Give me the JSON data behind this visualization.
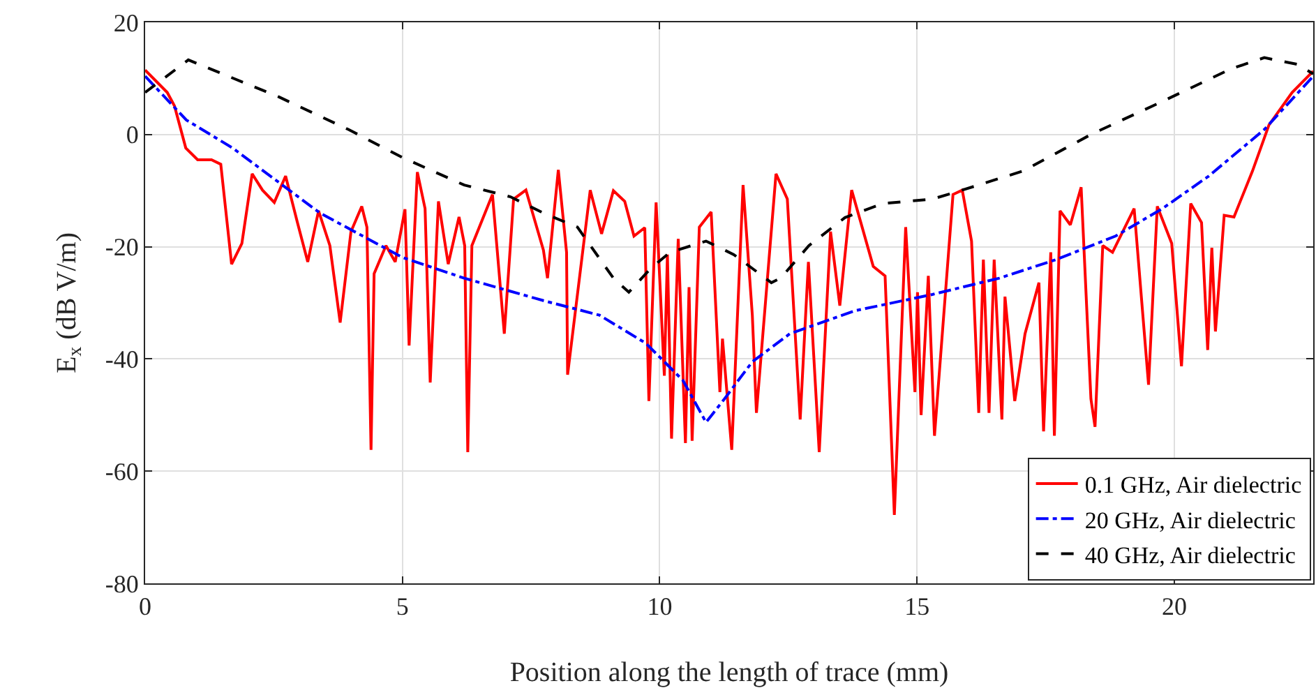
{
  "chart_data": {
    "type": "line",
    "xlabel": "Position along the length of trace (mm)",
    "ylabel": "E$_{x}$ (dB V/m)",
    "xlim": [
      0,
      22.7
    ],
    "xticks": [
      0,
      5,
      10,
      15,
      20
    ],
    "ylim": [
      -80,
      20
    ],
    "yticks": [
      -80,
      -60,
      -40,
      -20,
      0,
      20
    ],
    "grid": true,
    "legend": "bottom right",
    "marker": "none",
    "series": [
      {
        "name": "0.1 GHz, Air dielectric",
        "color": "#ff0000",
        "line_style": "solid",
        "x": [
          0,
          0.43,
          0.57,
          0.79,
          1.02,
          1.29,
          1.47,
          1.68,
          1.88,
          2.08,
          2.28,
          2.51,
          2.73,
          2.96,
          3.16,
          3.37,
          3.59,
          3.79,
          4,
          4.21,
          4.31,
          4.39,
          4.45,
          4.68,
          4.86,
          5.05,
          5.13,
          5.29,
          5.44,
          5.54,
          5.7,
          5.89,
          6.1,
          6.21,
          6.27,
          6.35,
          6.75,
          6.98,
          7.16,
          7.4,
          7.74,
          7.82,
          8.03,
          8.19,
          8.21,
          8.65,
          8.87,
          9.1,
          9.32,
          9.5,
          9.71,
          9.79,
          9.93,
          10.09,
          10.15,
          10.23,
          10.36,
          10.5,
          10.57,
          10.63,
          10.77,
          11,
          11.17,
          11.22,
          11.4,
          11.62,
          11.8,
          11.88,
          12.26,
          12.48,
          12.73,
          12.89,
          13.1,
          13.32,
          13.5,
          13.73,
          14.15,
          14.38,
          14.56,
          14.78,
          14.96,
          15.01,
          15.08,
          15.22,
          15.34,
          15.7,
          15.88,
          16.06,
          16.2,
          16.29,
          16.4,
          16.5,
          16.65,
          16.71,
          16.9,
          17.1,
          17.37,
          17.46,
          17.6,
          17.67,
          17.78,
          17.98,
          18.19,
          18.38,
          18.46,
          18.61,
          18.8,
          19.22,
          19.5,
          19.67,
          19.95,
          20.14,
          20.32,
          20.53,
          20.65,
          20.73,
          20.8,
          20.97,
          21.16,
          21.52,
          21.84,
          22.29,
          22.7
        ],
        "values": [
          11.5,
          7.5,
          5.1,
          -2.4,
          -4.5,
          -4.5,
          -5.3,
          -23.1,
          -19.4,
          -7,
          -9.9,
          -12.1,
          -7.4,
          -15.7,
          -22.7,
          -13.6,
          -19.8,
          -33.5,
          -17.3,
          -12.8,
          -16.5,
          -56.2,
          -24.8,
          -19.8,
          -22.7,
          -13.3,
          -37.6,
          -6.7,
          -13.2,
          -44.2,
          -11.9,
          -23.1,
          -14.7,
          -19.8,
          -56.6,
          -19.8,
          -10.7,
          -35.5,
          -11.5,
          -9.9,
          -20.6,
          -25.6,
          -6.3,
          -21,
          -42.8,
          -9.9,
          -17.7,
          -10,
          -11.9,
          -18.1,
          -16.6,
          -47.5,
          -12.1,
          -43,
          -21.4,
          -54.2,
          -18.6,
          -55,
          -27.2,
          -54.6,
          -16.5,
          -13.8,
          -45.9,
          -36.4,
          -56.2,
          -9,
          -32.2,
          -49.6,
          -7,
          -11.5,
          -50.8,
          -22.7,
          -56.6,
          -17.3,
          -30.5,
          -9.9,
          -23.5,
          -25.2,
          -67.8,
          -16.5,
          -45.9,
          -28.1,
          -50,
          -25.2,
          -53.7,
          -10.7,
          -9.9,
          -19,
          -49.6,
          -22.3,
          -49.6,
          -22.3,
          -50.8,
          -28.9,
          -47.5,
          -35.5,
          -26.4,
          -52.9,
          -21,
          -53.7,
          -13.6,
          -16.1,
          -9.4,
          -47.1,
          -52.1,
          -19.8,
          -21,
          -13.2,
          -44.6,
          -12.8,
          -19.4,
          -41.3,
          -12.3,
          -15.7,
          -38.4,
          -20.2,
          -35.1,
          -14.4,
          -14.7,
          -6.5,
          1.7,
          7.5,
          11.3
        ]
      },
      {
        "name": "20 GHz, Air dielectric",
        "color": "#0000ff",
        "line_style": "dashdot",
        "x": [
          0,
          0.8,
          1.7,
          3.4,
          5,
          6.2,
          7.74,
          8.83,
          9.73,
          10.45,
          10.9,
          11.26,
          11.8,
          12.53,
          13.8,
          15.3,
          16.6,
          17.7,
          18.86,
          19.77,
          20.67,
          21.75,
          22.7
        ],
        "values": [
          10.4,
          2.6,
          -2.4,
          -14,
          -21.9,
          -25.6,
          -29.6,
          -32.2,
          -37.2,
          -43.8,
          -51.3,
          -47.1,
          -40.5,
          -35.5,
          -31.4,
          -28.5,
          -25.6,
          -22.3,
          -18.1,
          -13.2,
          -7.4,
          0.9,
          10.4
        ]
      },
      {
        "name": "40 GHz, Air dielectric",
        "color": "#000000",
        "line_style": "dashed",
        "x": [
          0,
          0.84,
          2.6,
          3.95,
          5,
          6.2,
          7.1,
          7.74,
          8.4,
          9.1,
          9.4,
          9.82,
          10.2,
          10.9,
          11.44,
          12.17,
          12.35,
          12.9,
          13.6,
          14.33,
          15.3,
          15.88,
          17.06,
          18.4,
          19.77,
          21.1,
          21.75,
          22.4,
          22.7
        ],
        "values": [
          7.5,
          13.3,
          6.7,
          0.9,
          -4.1,
          -9,
          -11.1,
          -14,
          -16.5,
          -25.6,
          -28.1,
          -23.9,
          -21,
          -19,
          -21.4,
          -26.4,
          -25.6,
          -19.8,
          -14.8,
          -12.3,
          -11.5,
          -9.9,
          -6.5,
          0.1,
          5.9,
          11.7,
          13.7,
          12.5,
          10.8
        ]
      }
    ]
  }
}
